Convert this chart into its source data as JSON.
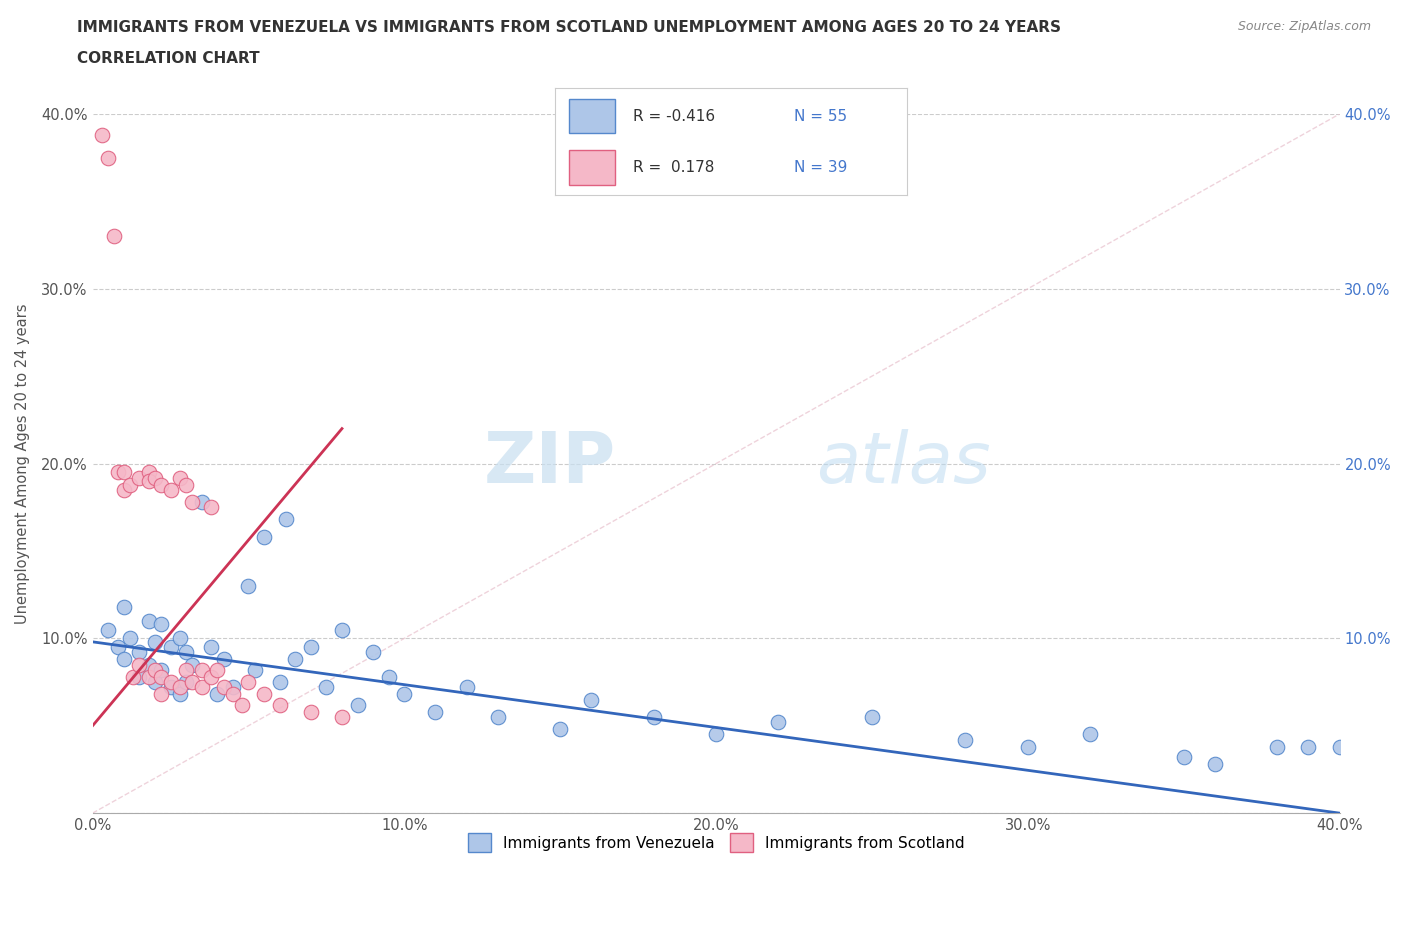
{
  "title_line1": "IMMIGRANTS FROM VENEZUELA VS IMMIGRANTS FROM SCOTLAND UNEMPLOYMENT AMONG AGES 20 TO 24 YEARS",
  "title_line2": "CORRELATION CHART",
  "source": "Source: ZipAtlas.com",
  "ylabel": "Unemployment Among Ages 20 to 24 years",
  "xlim": [
    0,
    0.4
  ],
  "ylim": [
    0,
    0.4
  ],
  "xticks": [
    0.0,
    0.1,
    0.2,
    0.3,
    0.4
  ],
  "yticks": [
    0.0,
    0.1,
    0.2,
    0.3,
    0.4
  ],
  "xticklabels": [
    "0.0%",
    "10.0%",
    "20.0%",
    "30.0%",
    "40.0%"
  ],
  "yticklabels_left": [
    "",
    "10.0%",
    "20.0%",
    "30.0%",
    "40.0%"
  ],
  "yticklabels_right": [
    "",
    "10.0%",
    "20.0%",
    "30.0%",
    "40.0%"
  ],
  "venezuela_color": "#aec6e8",
  "scotland_color": "#f5b8c8",
  "venezuela_edge": "#5588cc",
  "scotland_edge": "#e06080",
  "trend_venezuela_color": "#3366bb",
  "trend_scotland_color": "#cc3355",
  "R_venezuela": -0.416,
  "N_venezuela": 55,
  "R_scotland": 0.178,
  "N_scotland": 39,
  "watermark_zip": "ZIP",
  "watermark_atlas": "atlas",
  "legend_R_color": "#333333",
  "legend_N_color": "#4477cc",
  "venezuela_x": [
    0.005,
    0.008,
    0.01,
    0.01,
    0.012,
    0.015,
    0.015,
    0.018,
    0.018,
    0.02,
    0.02,
    0.022,
    0.022,
    0.025,
    0.025,
    0.028,
    0.028,
    0.03,
    0.03,
    0.032,
    0.035,
    0.038,
    0.04,
    0.042,
    0.045,
    0.05,
    0.052,
    0.055,
    0.06,
    0.062,
    0.065,
    0.07,
    0.075,
    0.08,
    0.085,
    0.09,
    0.095,
    0.1,
    0.11,
    0.12,
    0.13,
    0.15,
    0.16,
    0.18,
    0.2,
    0.22,
    0.25,
    0.28,
    0.3,
    0.32,
    0.35,
    0.36,
    0.38,
    0.39,
    0.4
  ],
  "venezuela_y": [
    0.105,
    0.095,
    0.118,
    0.088,
    0.1,
    0.092,
    0.078,
    0.11,
    0.085,
    0.098,
    0.075,
    0.108,
    0.082,
    0.095,
    0.072,
    0.1,
    0.068,
    0.092,
    0.075,
    0.085,
    0.178,
    0.095,
    0.068,
    0.088,
    0.072,
    0.13,
    0.082,
    0.158,
    0.075,
    0.168,
    0.088,
    0.095,
    0.072,
    0.105,
    0.062,
    0.092,
    0.078,
    0.068,
    0.058,
    0.072,
    0.055,
    0.048,
    0.065,
    0.055,
    0.045,
    0.052,
    0.055,
    0.042,
    0.038,
    0.045,
    0.032,
    0.028,
    0.038,
    0.038,
    0.038
  ],
  "scotland_x": [
    0.003,
    0.005,
    0.007,
    0.008,
    0.01,
    0.01,
    0.012,
    0.013,
    0.015,
    0.015,
    0.018,
    0.018,
    0.018,
    0.02,
    0.02,
    0.022,
    0.022,
    0.022,
    0.025,
    0.025,
    0.028,
    0.028,
    0.03,
    0.03,
    0.032,
    0.032,
    0.035,
    0.035,
    0.038,
    0.038,
    0.04,
    0.042,
    0.045,
    0.048,
    0.05,
    0.055,
    0.06,
    0.07,
    0.08
  ],
  "scotland_y": [
    0.388,
    0.375,
    0.33,
    0.195,
    0.195,
    0.185,
    0.188,
    0.078,
    0.192,
    0.085,
    0.195,
    0.19,
    0.078,
    0.192,
    0.082,
    0.188,
    0.078,
    0.068,
    0.185,
    0.075,
    0.192,
    0.072,
    0.188,
    0.082,
    0.178,
    0.075,
    0.082,
    0.072,
    0.175,
    0.078,
    0.082,
    0.072,
    0.068,
    0.062,
    0.075,
    0.068,
    0.062,
    0.058,
    0.055
  ],
  "trend_ven_x0": 0.0,
  "trend_ven_x1": 0.4,
  "trend_ven_y0": 0.098,
  "trend_ven_y1": 0.0,
  "trend_sco_x0": 0.0,
  "trend_sco_x1": 0.08,
  "trend_sco_y0": 0.05,
  "trend_sco_y1": 0.22
}
